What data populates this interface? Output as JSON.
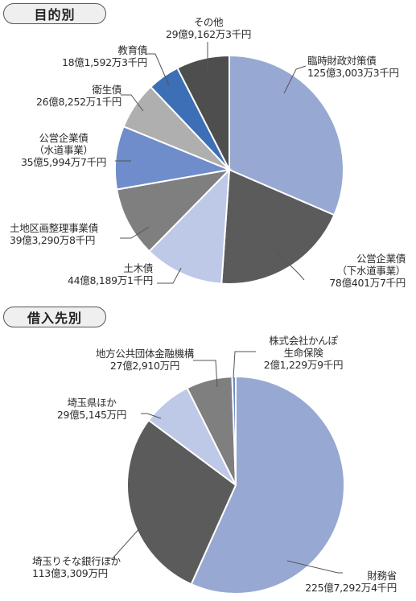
{
  "sections": [
    {
      "title": "目的別"
    },
    {
      "title": "借入先別"
    }
  ],
  "chart_data": [
    {
      "type": "pie",
      "title": "目的別",
      "slices": [
        {
          "name": "臨時財政対策債",
          "amount": "125億3,003万3千円",
          "value": 125.30033,
          "color": "#97a8d2"
        },
        {
          "name": "公営企業債（下水道事業）",
          "label_lines": [
            "公営企業債",
            "（下水道事業）"
          ],
          "amount": "78億401万7千円",
          "value": 78.04017,
          "color": "#5b5b5b"
        },
        {
          "name": "土木債",
          "amount": "44億8,189万1千円",
          "value": 44.81891,
          "color": "#bec8e7"
        },
        {
          "name": "土地区画整理事業債",
          "amount": "39億3,290万8千円",
          "value": 39.32908,
          "color": "#7f7f7f"
        },
        {
          "name": "公営企業債（水道事業）",
          "label_lines": [
            "公営企業債",
            "（水道事業）"
          ],
          "amount": "35億5,994万7千円",
          "value": 35.59947,
          "color": "#6f8ccb"
        },
        {
          "name": "衛生債",
          "amount": "26億8,252万1千円",
          "value": 26.82521,
          "color": "#afafaf"
        },
        {
          "name": "教育債",
          "amount": "18億1,592万3千円",
          "value": 18.15923,
          "color": "#3c6fb5"
        },
        {
          "name": "その他",
          "amount": "29億9,162万3千円",
          "value": 29.91623,
          "color": "#4e4e4e"
        }
      ]
    },
    {
      "type": "pie",
      "title": "借入先別",
      "slices": [
        {
          "name": "財務省",
          "amount": "225億7,292万4千円",
          "value": 225.72924,
          "color": "#97a8d2"
        },
        {
          "name": "埼玉りそな銀行ほか",
          "amount": "113億3,309万円",
          "value": 113.3309,
          "color": "#5b5b5b"
        },
        {
          "name": "埼玉県ほか",
          "amount": "29億5,145万円",
          "value": 29.5145,
          "color": "#bec8e7"
        },
        {
          "name": "地方公共団体金融機構",
          "amount": "27億2,910万円",
          "value": 27.291,
          "color": "#7f7f7f"
        },
        {
          "name": "株式会社かんぽ生命保険",
          "label_lines": [
            "株式会社かんぽ",
            "生命保険"
          ],
          "amount": "2億1,229万9千円",
          "value": 2.12299,
          "color": "#6f8ccb"
        }
      ]
    }
  ]
}
